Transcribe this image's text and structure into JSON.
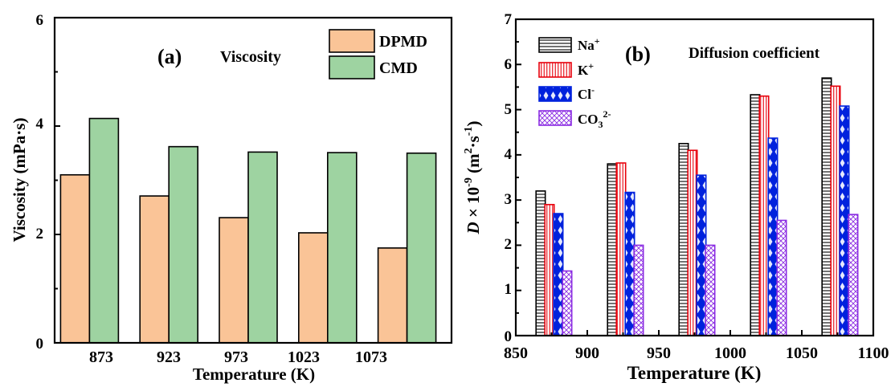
{
  "chart_data": [
    {
      "type": "bar",
      "panel_label": "(a)",
      "title": "Viscosity",
      "xlabel": "Temperature (K)",
      "ylabel": "Viscosity (mPa·s)",
      "ylim": [
        0,
        6
      ],
      "yticks": [
        "0",
        "2",
        "4",
        "6"
      ],
      "categories": [
        "873",
        "923",
        "973",
        "1023",
        "1073"
      ],
      "series": [
        {
          "name": "DPMD",
          "color": "#fac497",
          "values": [
            3.1,
            2.71,
            2.31,
            2.03,
            1.75
          ]
        },
        {
          "name": "CMD",
          "color": "#9ed3a1",
          "values": [
            4.14,
            3.62,
            3.52,
            3.51,
            3.5
          ]
        }
      ],
      "legend_position": "top-right"
    },
    {
      "type": "bar",
      "panel_label": "(b)",
      "title": "Diffusion coefficient",
      "xlabel": "Temperature (K)",
      "ylabel": {
        "italic": "D",
        "rest": " × 10",
        "exp": "-9",
        "units": " (m",
        "units_exp": "2",
        "units_rest": "·s",
        "units_exp2": "-1",
        "close": ")"
      },
      "xlim": [
        850,
        1100
      ],
      "ylim": [
        0,
        7
      ],
      "xticks": [
        "850",
        "900",
        "950",
        "1000",
        "1050",
        "1100"
      ],
      "yticks": [
        "0",
        "1",
        "2",
        "3",
        "4",
        "5",
        "6",
        "7"
      ],
      "temperatures": [
        873,
        923,
        973,
        1023,
        1073
      ],
      "series": [
        {
          "name": "Na",
          "sup": "+",
          "color": "#000000",
          "pattern": "hlines",
          "values": [
            3.2,
            3.8,
            4.25,
            5.33,
            5.7
          ]
        },
        {
          "name": "K",
          "sup": "+",
          "color": "#e8000b",
          "pattern": "vlines",
          "values": [
            2.9,
            3.82,
            4.1,
            5.3,
            5.52
          ]
        },
        {
          "name": "Cl",
          "sup": "-",
          "color": "#0022dd",
          "pattern": "dots",
          "values": [
            2.7,
            3.17,
            3.55,
            4.37,
            5.08
          ]
        },
        {
          "name": "CO",
          "sub": "3",
          "sup": "2-",
          "color": "#8a2be2",
          "pattern": "cross",
          "values": [
            1.43,
            2.0,
            2.0,
            2.55,
            2.68
          ]
        }
      ],
      "legend_position": "top-left"
    }
  ]
}
